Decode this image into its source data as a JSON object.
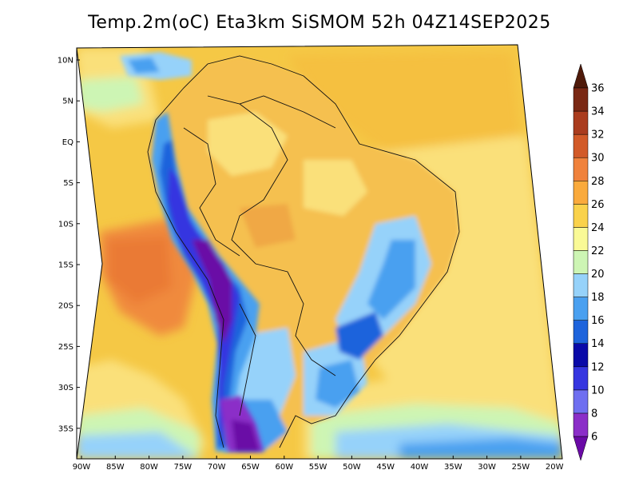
{
  "title": "Temp.2m(oC) Eta3km SiSMOM 52h 04Z14SEP2025",
  "lat_labels": [
    "10N",
    "5N",
    "EQ",
    "5S",
    "10S",
    "15S",
    "20S",
    "25S",
    "30S",
    "35S"
  ],
  "lon_labels": [
    "90W",
    "85W",
    "80W",
    "75W",
    "70W",
    "65W",
    "60W",
    "55W",
    "50W",
    "45W",
    "40W",
    "35W",
    "30W",
    "25W",
    "20W"
  ],
  "colorbar": {
    "labels": [
      "6",
      "8",
      "10",
      "12",
      "14",
      "16",
      "18",
      "20",
      "22",
      "24",
      "26",
      "28",
      "30",
      "32",
      "34",
      "36"
    ],
    "colors": [
      "#6a0aa6",
      "#8b2ec8",
      "#6f6ff0",
      "#3636e0",
      "#0a0aa8",
      "#1e64dc",
      "#4aa0f0",
      "#96d2fa",
      "#cdf5b4",
      "#fafa96",
      "#fad24b",
      "#faaa3c",
      "#f0823c",
      "#d25a28",
      "#aa3c1e",
      "#7a2814",
      "#4f1a0a"
    ],
    "units": "oC"
  },
  "colors": {
    "ocean_warm": "#f5c845",
    "ocean_pale": "#fae07a",
    "land_warm": "#f5c050",
    "pacific_hot": "#f08a3c",
    "southern_cool": "#96d2fa",
    "andes_cold": "#3636e0"
  }
}
